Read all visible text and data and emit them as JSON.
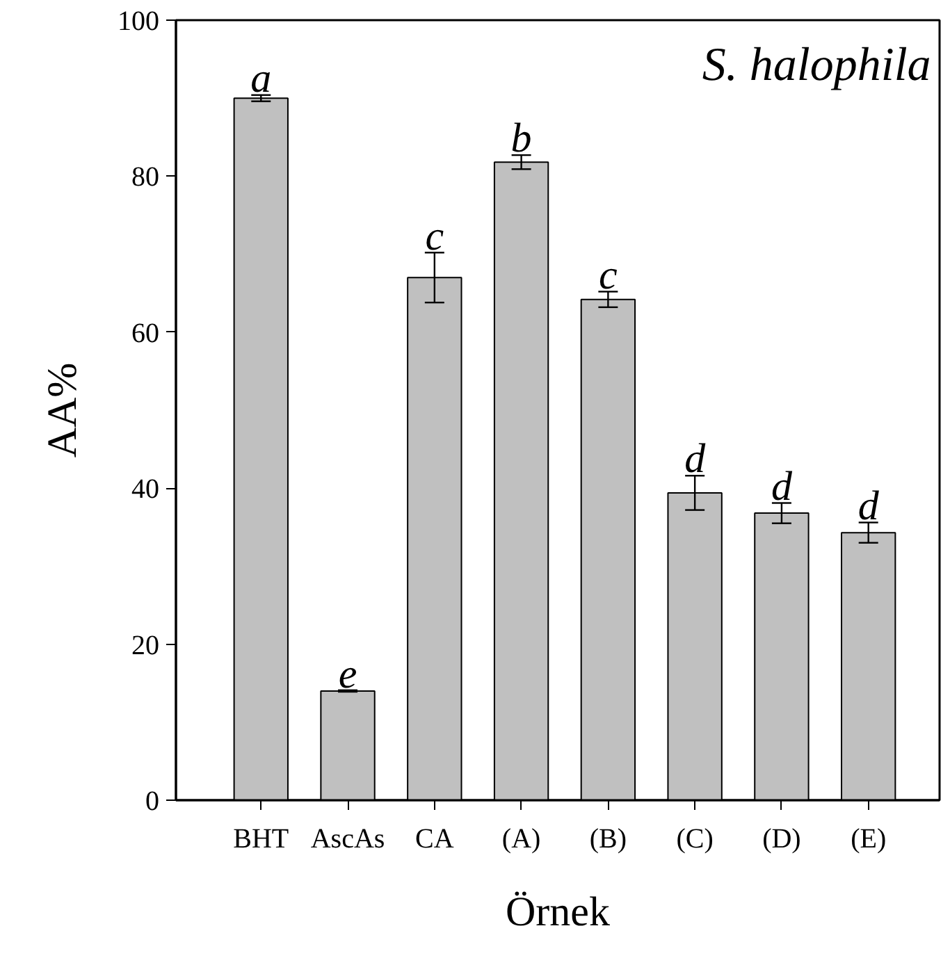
{
  "chart_data": {
    "type": "bar",
    "xlabel": "Örnek",
    "ylabel": "AA%",
    "categories": [
      "BHT",
      "AscAs",
      "CA",
      "(A)",
      "(B)",
      "(C)",
      "(D)",
      "(E)"
    ],
    "values": [
      90.0,
      14.0,
      67.0,
      81.8,
      64.2,
      39.4,
      36.8,
      34.3
    ],
    "errors": [
      0.4,
      0.1,
      3.2,
      0.9,
      1.0,
      2.2,
      1.3,
      1.3
    ],
    "color": "#c0c0c0",
    "ylim": [
      0,
      100
    ],
    "yticks": [
      0,
      20,
      40,
      60,
      80,
      100
    ],
    "grid": false,
    "annotations": [
      {
        "text": "S. halophila"
      },
      {
        "text": "a",
        "x": "BHT",
        "y": 90.0
      },
      {
        "text": "e",
        "x": "AscAs",
        "y": 14.0
      },
      {
        "text": "c",
        "x": "CA",
        "y": 67.0
      },
      {
        "text": "b",
        "x": "(A)",
        "y": 81.8
      },
      {
        "text": "c",
        "x": "(B)",
        "y": 64.2
      },
      {
        "text": "d",
        "x": "(C)",
        "y": 39.4
      },
      {
        "text": "d",
        "x": "(D)",
        "y": 36.8
      },
      {
        "text": "d",
        "x": "(E)",
        "y": 34.3
      }
    ]
  }
}
